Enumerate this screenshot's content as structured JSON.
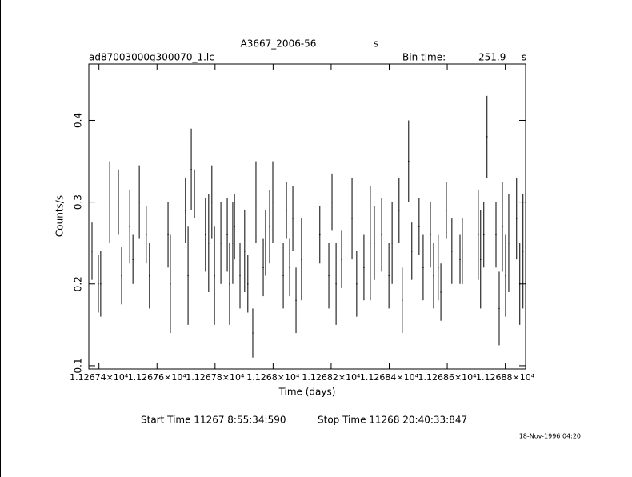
{
  "chart_data": {
    "type": "errorbar",
    "title": "A3667_2006-56",
    "title_unit": "s",
    "file_name": "ad87003000g300070_1.lc",
    "bin_time_label": "Bin time:",
    "bin_time": "251.9",
    "bin_time_unit": "s",
    "ylabel": "Counts/s",
    "xlabel": "Time (days)",
    "start_time": "Start Time 11267  8:55:34:590",
    "stop_time": "Stop Time 11268 20:40:33:847",
    "date_stamp": "18-Nov-1996 04:20",
    "color": "#000000",
    "xlim": [
      11267.365,
      11268.87
    ],
    "ylim": [
      0.096,
      0.469
    ],
    "xticks": [
      {
        "value": 11267.4,
        "label": "1.12674×10⁴"
      },
      {
        "value": 11267.6,
        "label": "1.12676×10⁴"
      },
      {
        "value": 11267.8,
        "label": "1.12678×10⁴"
      },
      {
        "value": 11268.0,
        "label": "1.1268×10⁴"
      },
      {
        "value": 11268.2,
        "label": "1.12682×10⁴"
      },
      {
        "value": 11268.4,
        "label": "1.12684×10⁴"
      },
      {
        "value": 11268.6,
        "label": "1.12686×10⁴"
      },
      {
        "value": 11268.8,
        "label": "1.12688×10⁴"
      }
    ],
    "yticks": [
      0.1,
      0.2,
      0.3,
      0.4
    ],
    "x": [
      11267.376,
      11267.398,
      11267.406,
      11267.437,
      11267.467,
      11267.478,
      11267.506,
      11267.517,
      11267.539,
      11267.563,
      11267.574,
      11267.638,
      11267.646,
      11267.698,
      11267.707,
      11267.718,
      11267.729,
      11267.767,
      11267.778,
      11267.789,
      11267.798,
      11267.82,
      11267.842,
      11267.85,
      11267.861,
      11267.867,
      11267.886,
      11267.902,
      11267.913,
      11267.93,
      11267.941,
      11267.966,
      11267.974,
      11267.988,
      11267.999,
      11268.035,
      11268.046,
      11268.057,
      11268.068,
      11268.079,
      11268.098,
      11268.161,
      11268.192,
      11268.203,
      11268.217,
      11268.236,
      11268.272,
      11268.288,
      11268.313,
      11268.335,
      11268.349,
      11268.374,
      11268.399,
      11268.41,
      11268.434,
      11268.445,
      11268.467,
      11268.478,
      11268.503,
      11268.517,
      11268.542,
      11268.553,
      11268.569,
      11268.578,
      11268.597,
      11268.616,
      11268.644,
      11268.652,
      11268.707,
      11268.715,
      11268.726,
      11268.737,
      11268.768,
      11268.779,
      11268.79,
      11268.801,
      11268.812,
      11268.839,
      11268.85,
      11268.861
    ],
    "values": [
      0.24,
      0.2,
      0.2,
      0.3,
      0.3,
      0.21,
      0.27,
      0.23,
      0.3,
      0.26,
      0.21,
      0.26,
      0.2,
      0.29,
      0.21,
      0.34,
      0.31,
      0.26,
      0.25,
      0.3,
      0.21,
      0.25,
      0.26,
      0.2,
      0.25,
      0.27,
      0.21,
      0.24,
      0.2,
      0.14,
      0.3,
      0.22,
      0.25,
      0.27,
      0.3,
      0.21,
      0.29,
      0.22,
      0.28,
      0.18,
      0.23,
      0.26,
      0.21,
      0.3,
      0.2,
      0.23,
      0.28,
      0.2,
      0.22,
      0.25,
      0.25,
      0.26,
      0.21,
      0.25,
      0.29,
      0.18,
      0.35,
      0.24,
      0.27,
      0.22,
      0.26,
      0.21,
      0.22,
      0.19,
      0.29,
      0.24,
      0.23,
      0.24,
      0.26,
      0.23,
      0.26,
      0.38,
      0.26,
      0.17,
      0.27,
      0.21,
      0.25,
      0.28,
      0.2,
      0.24
    ],
    "errors": [
      0.035,
      0.035,
      0.04,
      0.05,
      0.04,
      0.035,
      0.045,
      0.03,
      0.045,
      0.035,
      0.04,
      0.04,
      0.06,
      0.04,
      0.06,
      0.05,
      0.03,
      0.045,
      0.06,
      0.045,
      0.06,
      0.05,
      0.045,
      0.05,
      0.05,
      0.04,
      0.04,
      0.05,
      0.035,
      0.03,
      0.05,
      0.035,
      0.04,
      0.045,
      0.05,
      0.04,
      0.035,
      0.035,
      0.04,
      0.04,
      0.05,
      0.035,
      0.04,
      0.035,
      0.05,
      0.035,
      0.05,
      0.04,
      0.04,
      0.07,
      0.045,
      0.045,
      0.04,
      0.05,
      0.04,
      0.04,
      0.05,
      0.035,
      0.035,
      0.04,
      0.04,
      0.04,
      0.04,
      0.035,
      0.035,
      0.04,
      0.03,
      0.04,
      0.055,
      0.06,
      0.04,
      0.05,
      0.04,
      0.045,
      0.055,
      0.05,
      0.06,
      0.05,
      0.05,
      0.07
    ]
  }
}
